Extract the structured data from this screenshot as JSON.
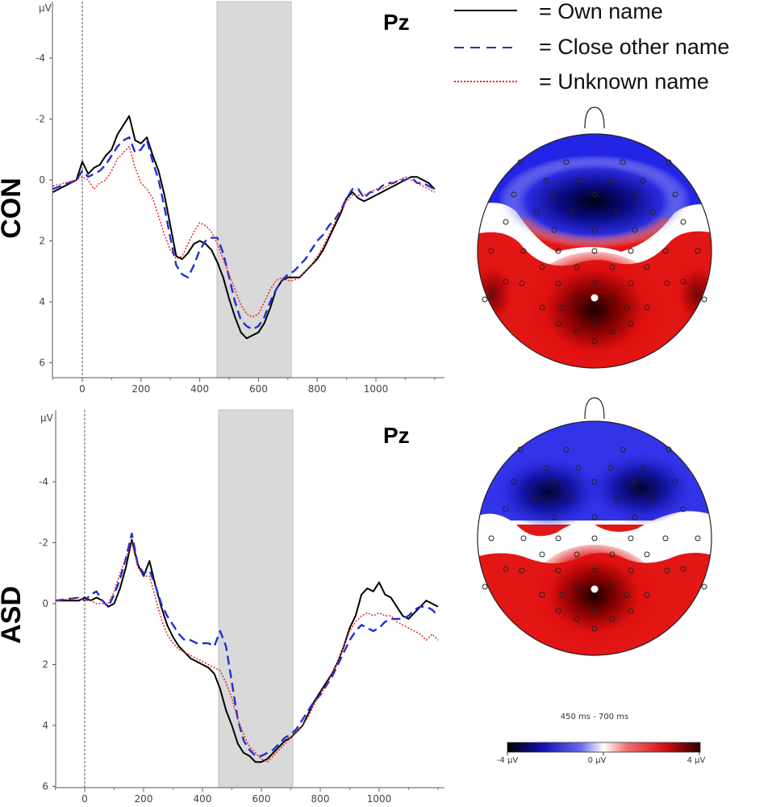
{
  "legend": [
    {
      "label": "= Own name",
      "color": "#000000",
      "dash": "solid"
    },
    {
      "label": "= Close other name",
      "color": "#1f2fd6",
      "dash": "dashed"
    },
    {
      "label": "= Unknown name",
      "color": "#ee2222",
      "dash": "dotted"
    }
  ],
  "colorbar": {
    "time_window": "450 ms - 700 ms",
    "min_label": "-4 µV",
    "mid_label": "0 µV",
    "max_label": "4 µV",
    "colors": [
      "#000000",
      "#1414c8",
      "#ffffff",
      "#e81c1c",
      "#3a0000"
    ]
  },
  "chart_data": [
    {
      "type": "line",
      "group": "CON",
      "channel": "Pz",
      "ylabel": "µV",
      "y_inverted": true,
      "xlim": [
        -100,
        1200
      ],
      "ylim": [
        -6,
        6.5
      ],
      "x_ticks": [
        "0",
        "200",
        "400",
        "600",
        "800",
        "1000"
      ],
      "y_ticks": [
        "-4",
        "-2",
        "0",
        "2",
        "4",
        "6"
      ],
      "highlight_window": [
        450,
        700
      ],
      "series": [
        {
          "name": "Own name",
          "x": [
            -100,
            -20,
            0,
            20,
            40,
            60,
            80,
            100,
            120,
            140,
            160,
            180,
            200,
            220,
            240,
            260,
            280,
            300,
            320,
            340,
            360,
            380,
            400,
            420,
            440,
            460,
            480,
            500,
            520,
            540,
            560,
            580,
            600,
            620,
            640,
            660,
            680,
            700,
            720,
            740,
            760,
            780,
            800,
            820,
            840,
            860,
            880,
            900,
            920,
            940,
            960,
            980,
            1000,
            1020,
            1040,
            1060,
            1080,
            1100,
            1120,
            1140,
            1160,
            1180,
            1200
          ],
          "y": [
            0.4,
            0,
            -0.6,
            -0.2,
            -0.4,
            -0.5,
            -0.8,
            -1,
            -1.5,
            -1.8,
            -2.1,
            -1.3,
            -1.2,
            -1.4,
            -0.8,
            -0.3,
            0.5,
            1.5,
            2.5,
            2.6,
            2.4,
            2.1,
            2.0,
            2.1,
            2.3,
            2.7,
            3.2,
            3.9,
            4.5,
            5.0,
            5.2,
            5.1,
            5.0,
            4.7,
            4.2,
            3.6,
            3.3,
            3.2,
            3.2,
            3.2,
            3.0,
            2.8,
            2.6,
            2.3,
            1.9,
            1.5,
            1.1,
            0.6,
            0.4,
            0.6,
            0.7,
            0.6,
            0.5,
            0.4,
            0.3,
            0.2,
            0.1,
            0,
            -0.1,
            -0.1,
            0,
            0.1,
            0.3
          ]
        },
        {
          "name": "Close other name",
          "x": [
            -100,
            -20,
            0,
            20,
            40,
            60,
            80,
            100,
            120,
            140,
            160,
            180,
            200,
            220,
            240,
            260,
            280,
            300,
            320,
            340,
            360,
            380,
            400,
            420,
            440,
            460,
            480,
            500,
            520,
            540,
            560,
            580,
            600,
            620,
            640,
            660,
            680,
            700,
            720,
            740,
            760,
            780,
            800,
            820,
            840,
            860,
            880,
            900,
            920,
            940,
            960,
            980,
            1000,
            1020,
            1040,
            1060,
            1080,
            1100,
            1120,
            1140,
            1160,
            1180,
            1200
          ],
          "y": [
            0.3,
            0,
            -0.3,
            -0.1,
            -0.2,
            -0.3,
            -0.5,
            -0.8,
            -1.1,
            -1.3,
            -1.4,
            -0.9,
            -1.0,
            -1.3,
            -0.6,
            0,
            0.9,
            1.9,
            2.8,
            3.1,
            3.2,
            2.8,
            2.3,
            2.0,
            1.9,
            1.9,
            2.4,
            3.2,
            4.0,
            4.6,
            4.8,
            4.9,
            4.8,
            4.5,
            4.0,
            3.6,
            3.3,
            3.1,
            3.0,
            2.8,
            2.6,
            2.3,
            2.0,
            1.8,
            1.5,
            1.3,
            1.0,
            0.6,
            0.3,
            0.3,
            0.6,
            0.4,
            0.4,
            0.2,
            0.1,
            0.1,
            0,
            0,
            -0.1,
            0.1,
            0.1,
            0.2,
            0.3
          ]
        },
        {
          "name": "Unknown name",
          "x": [
            -100,
            -20,
            0,
            20,
            40,
            60,
            80,
            100,
            120,
            140,
            160,
            180,
            200,
            220,
            240,
            260,
            280,
            300,
            320,
            340,
            360,
            380,
            400,
            420,
            440,
            460,
            480,
            500,
            520,
            540,
            560,
            580,
            600,
            620,
            640,
            660,
            680,
            700,
            720,
            740,
            760,
            780,
            800,
            820,
            840,
            860,
            880,
            900,
            920,
            940,
            960,
            980,
            1000,
            1020,
            1040,
            1060,
            1080,
            1100,
            1120,
            1140,
            1160,
            1180,
            1200
          ],
          "y": [
            0.2,
            0,
            -0.1,
            0,
            0.3,
            0.1,
            0,
            -0.3,
            -0.7,
            -0.9,
            -1.1,
            -0.4,
            0.1,
            0.3,
            0.6,
            1.2,
            1.8,
            2.3,
            2.6,
            2.5,
            2.1,
            1.7,
            1.4,
            1.5,
            1.7,
            2.1,
            2.6,
            3.1,
            3.6,
            4.1,
            4.4,
            4.5,
            4.4,
            4.0,
            3.6,
            3.3,
            3.2,
            3.3,
            3.3,
            3.2,
            3.0,
            2.8,
            2.5,
            2.2,
            1.8,
            1.4,
            1.0,
            0.7,
            0.5,
            0.5,
            0.5,
            0.4,
            0.3,
            0.3,
            0.2,
            0.1,
            0,
            -0.1,
            0,
            0.1,
            0.2,
            0.3,
            0.4
          ]
        }
      ]
    },
    {
      "type": "line",
      "group": "ASD",
      "channel": "Pz",
      "ylabel": "µV",
      "y_inverted": true,
      "xlim": [
        -100,
        1200
      ],
      "ylim": [
        -6,
        6.5
      ],
      "x_ticks": [
        "0",
        "200",
        "400",
        "600",
        "800",
        "1000"
      ],
      "y_ticks": [
        "-4",
        "-2",
        "0",
        "2",
        "4",
        "6"
      ],
      "highlight_window": [
        450,
        700
      ],
      "series": [
        {
          "name": "Own name",
          "x": [
            -100,
            -20,
            0,
            20,
            40,
            60,
            80,
            100,
            120,
            140,
            160,
            180,
            200,
            220,
            240,
            260,
            280,
            300,
            320,
            340,
            360,
            380,
            400,
            420,
            440,
            460,
            480,
            500,
            520,
            540,
            560,
            580,
            600,
            620,
            640,
            660,
            680,
            700,
            720,
            740,
            760,
            780,
            800,
            820,
            840,
            860,
            880,
            900,
            920,
            940,
            960,
            980,
            1000,
            1020,
            1040,
            1060,
            1080,
            1100,
            1120,
            1140,
            1160,
            1180,
            1200
          ],
          "y": [
            -0.1,
            -0.1,
            -0.2,
            -0.1,
            -0.2,
            -0.1,
            0.1,
            0,
            -0.5,
            -1.2,
            -2.1,
            -1.3,
            -0.9,
            -1.4,
            -0.6,
            0.1,
            0.7,
            1.1,
            1.4,
            1.6,
            1.8,
            1.9,
            2.0,
            2.1,
            2.3,
            2.8,
            3.5,
            4.0,
            4.6,
            4.9,
            5.0,
            5.2,
            5.2,
            5.1,
            4.9,
            4.7,
            4.5,
            4.4,
            4.2,
            4.0,
            3.6,
            3.2,
            2.9,
            2.6,
            2.3,
            1.9,
            1.4,
            0.8,
            0.4,
            -0.3,
            -0.5,
            -0.4,
            -0.7,
            -0.3,
            -0.2,
            0.1,
            0.4,
            0.5,
            0.3,
            0.1,
            -0.1,
            0,
            0.1
          ]
        },
        {
          "name": "Close other name",
          "x": [
            -100,
            -20,
            0,
            20,
            40,
            60,
            80,
            100,
            120,
            140,
            160,
            180,
            200,
            220,
            240,
            260,
            280,
            300,
            320,
            340,
            360,
            380,
            400,
            420,
            440,
            460,
            480,
            500,
            520,
            540,
            560,
            580,
            600,
            620,
            640,
            660,
            680,
            700,
            720,
            740,
            760,
            780,
            800,
            820,
            840,
            860,
            880,
            900,
            920,
            940,
            960,
            980,
            1000,
            1020,
            1040,
            1060,
            1080,
            1100,
            1120,
            1140,
            1160,
            1180,
            1200
          ],
          "y": [
            -0.1,
            -0.2,
            -0.1,
            -0.3,
            -0.4,
            -0.1,
            0.1,
            -0.3,
            -0.8,
            -1.5,
            -2.3,
            -1.3,
            -1.0,
            -1.1,
            -0.6,
            0,
            0.4,
            0.7,
            1.0,
            1.2,
            1.2,
            1.3,
            1.3,
            1.3,
            1.4,
            0.9,
            1.4,
            2.6,
            3.8,
            4.5,
            4.8,
            5.0,
            5.0,
            4.9,
            4.8,
            4.6,
            4.4,
            4.3,
            4.1,
            3.8,
            3.5,
            3.2,
            3.0,
            2.7,
            2.4,
            2.0,
            1.6,
            1.2,
            0.9,
            0.7,
            0.8,
            0.9,
            0.8,
            0.6,
            0.5,
            0.5,
            0.5,
            0.4,
            0.2,
            0.1,
            0.1,
            0.2,
            0.4
          ]
        },
        {
          "name": "Unknown name",
          "x": [
            -100,
            -20,
            0,
            20,
            40,
            60,
            80,
            100,
            120,
            140,
            160,
            180,
            200,
            220,
            240,
            260,
            280,
            300,
            320,
            340,
            360,
            380,
            400,
            420,
            440,
            460,
            480,
            500,
            520,
            540,
            560,
            580,
            600,
            620,
            640,
            660,
            680,
            700,
            720,
            740,
            760,
            780,
            800,
            820,
            840,
            860,
            880,
            900,
            920,
            940,
            960,
            980,
            1000,
            1020,
            1040,
            1060,
            1080,
            1100,
            1120,
            1140,
            1160,
            1180,
            1200
          ],
          "y": [
            -0.1,
            -0.2,
            -0.1,
            -0.1,
            0,
            0,
            0,
            -0.4,
            -1.0,
            -1.5,
            -2.0,
            -1.2,
            -0.9,
            -0.9,
            -0.2,
            0.5,
            1.0,
            1.3,
            1.5,
            1.6,
            1.7,
            1.8,
            1.9,
            2.0,
            2.1,
            2.2,
            2.6,
            3.1,
            3.8,
            4.3,
            4.7,
            4.9,
            5.1,
            5.2,
            5.0,
            4.8,
            4.6,
            4.4,
            4.2,
            4.0,
            3.7,
            3.3,
            3.0,
            2.7,
            2.3,
            1.9,
            1.4,
            0.9,
            0.6,
            0.4,
            0.3,
            0.4,
            0.3,
            0.4,
            0.4,
            0.6,
            0.7,
            0.8,
            0.9,
            1.0,
            1.2,
            1.0,
            1.2
          ]
        }
      ]
    }
  ],
  "panels": [
    {
      "group_label": "CON",
      "channel_label": "Pz",
      "ylabel": "µV"
    },
    {
      "group_label": "ASD",
      "channel_label": "Pz",
      "ylabel": "µV"
    }
  ],
  "topomaps": [
    {
      "group": "CON",
      "negative_lobes": "frontal wide",
      "positive_lobes": "parietal"
    },
    {
      "group": "ASD",
      "negative_lobes": "frontal bilateral",
      "positive_lobes": "parietal"
    }
  ]
}
